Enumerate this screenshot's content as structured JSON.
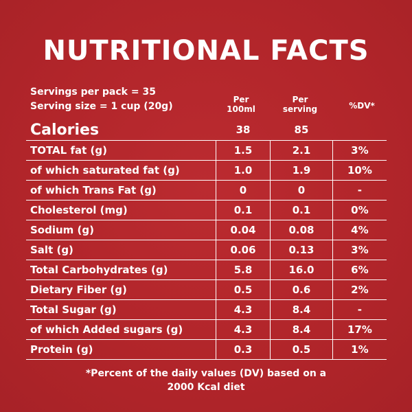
{
  "title": "NUTRITIONAL FACTS",
  "servings_per_pack": "Servings per pack = 35",
  "serving_size": "Serving size = 1 cup (20g)",
  "columns": {
    "per_100ml_line1": "Per",
    "per_100ml_line2": "100ml",
    "per_serving_line1": "Per",
    "per_serving_line2": "serving",
    "dv": "%DV*"
  },
  "calories": {
    "label": "Calories",
    "per_100ml": "38",
    "per_serving": "85"
  },
  "rows": [
    {
      "label": "TOTAL fat (g)",
      "per_100ml": "1.5",
      "per_serving": "2.1",
      "dv": "3%"
    },
    {
      "label": "of which saturated fat (g)",
      "per_100ml": "1.0",
      "per_serving": "1.9",
      "dv": "10%"
    },
    {
      "label": "of which Trans Fat (g)",
      "per_100ml": "0",
      "per_serving": "0",
      "dv": "-"
    },
    {
      "label": "Cholesterol (mg)",
      "per_100ml": "0.1",
      "per_serving": "0.1",
      "dv": "0%"
    },
    {
      "label": "Sodium (g)",
      "per_100ml": "0.04",
      "per_serving": "0.08",
      "dv": "4%"
    },
    {
      "label": "Salt (g)",
      "per_100ml": "0.06",
      "per_serving": "0.13",
      "dv": "3%"
    },
    {
      "label": "Total Carbohydrates (g)",
      "per_100ml": "5.8",
      "per_serving": "16.0",
      "dv": "6%"
    },
    {
      "label": "Dietary Fiber (g)",
      "per_100ml": "0.5",
      "per_serving": "0.6",
      "dv": "2%"
    },
    {
      "label": "Total Sugar (g)",
      "per_100ml": "4.3",
      "per_serving": "8.4",
      "dv": "-"
    },
    {
      "label": "of which Added sugars (g)",
      "per_100ml": "4.3",
      "per_serving": "8.4",
      "dv": "17%"
    },
    {
      "label": "Protein (g)",
      "per_100ml": "0.3",
      "per_serving": "0.5",
      "dv": "1%"
    }
  ],
  "footnote_line1": "*Percent of the daily values (DV) based on a",
  "footnote_line2": "2000 Kcal diet",
  "colors": {
    "background": "#b3262b",
    "text": "#ffffff"
  }
}
